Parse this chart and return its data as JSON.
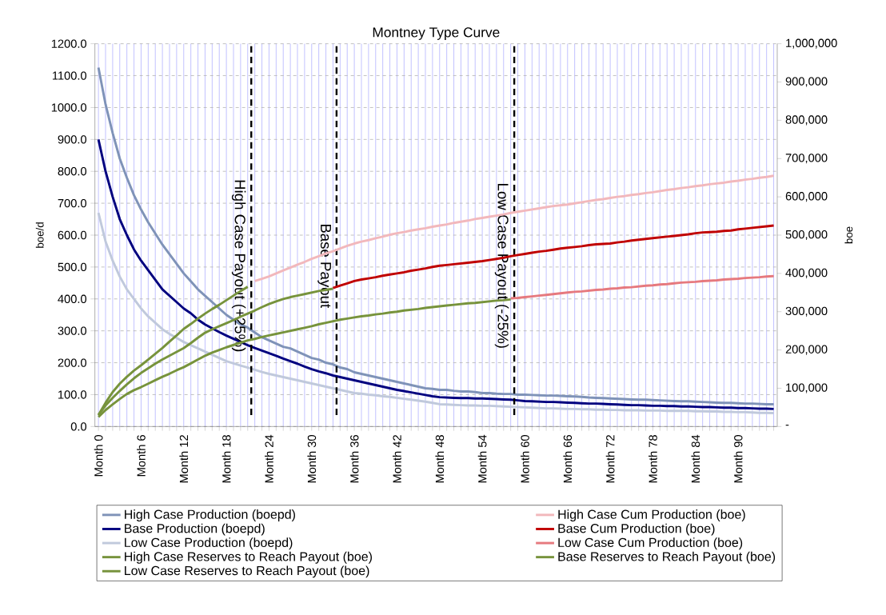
{
  "chart_data": {
    "type": "line",
    "title": "Montney Type Curve",
    "ylabel": "boe/d",
    "y2label": "boe",
    "categories": [
      "Month 0",
      null,
      null,
      null,
      null,
      null,
      "Month 6",
      null,
      null,
      null,
      null,
      null,
      "Month 12",
      null,
      null,
      null,
      null,
      null,
      "Month 18",
      null,
      null,
      null,
      null,
      null,
      "Month 24",
      null,
      null,
      null,
      null,
      null,
      "Month 30",
      null,
      null,
      null,
      null,
      null,
      "Month 36",
      null,
      null,
      null,
      null,
      null,
      "Month 42",
      null,
      null,
      null,
      null,
      null,
      "Month 48",
      null,
      null,
      null,
      null,
      null,
      "Month 54",
      null,
      null,
      null,
      null,
      null,
      "Month 60",
      null,
      null,
      null,
      null,
      null,
      "Month 66",
      null,
      null,
      null,
      null,
      null,
      "Month 72",
      null,
      null,
      null,
      null,
      null,
      "Month 78",
      null,
      null,
      null,
      null,
      null,
      "Month 84",
      null,
      null,
      null,
      null,
      null,
      "Month 90",
      null,
      null,
      null,
      null,
      null
    ],
    "ylim": [
      0,
      1200
    ],
    "yticks": [
      {
        "value": 0,
        "label": "0.0"
      },
      {
        "value": 100,
        "label": "100.0"
      },
      {
        "value": 200,
        "label": "200.0"
      },
      {
        "value": 300,
        "label": "300.0"
      },
      {
        "value": 400,
        "label": "400.0"
      },
      {
        "value": 500,
        "label": "500.0"
      },
      {
        "value": 600,
        "label": "600.0"
      },
      {
        "value": 700,
        "label": "700.0"
      },
      {
        "value": 800,
        "label": "800.0"
      },
      {
        "value": 900,
        "label": "900.0"
      },
      {
        "value": 1000,
        "label": "1000.0"
      },
      {
        "value": 1100,
        "label": "1100.0"
      },
      {
        "value": 1200,
        "label": "1200.0"
      }
    ],
    "y2lim": [
      0,
      1000000
    ],
    "y2ticks": [
      {
        "value": 0,
        "label": "-"
      },
      {
        "value": 100000,
        "label": "100,000"
      },
      {
        "value": 200000,
        "label": "200,000"
      },
      {
        "value": 300000,
        "label": "300,000"
      },
      {
        "value": 400000,
        "label": "400,000"
      },
      {
        "value": 500000,
        "label": "500,000"
      },
      {
        "value": 600000,
        "label": "600,000"
      },
      {
        "value": 700000,
        "label": "700,000"
      },
      {
        "value": 800000,
        "label": "800,000"
      },
      {
        "value": 900000,
        "label": "900,000"
      },
      {
        "value": 1000000,
        "label": "1,000,000"
      }
    ],
    "grid": true,
    "legend": "bottom",
    "annotations": [
      "High Case Payout (+25%)",
      "Base Payout",
      "Low Case Payout (-25%)"
    ],
    "series": [
      {
        "name": "High Case Production (boepd)",
        "color": "#7f93b8",
        "values": [
          1125,
          1010,
          920,
          840,
          780,
          725,
          680,
          640,
          605,
          570,
          540,
          510,
          480,
          455,
          430,
          410,
          390,
          370,
          350,
          335,
          320,
          310,
          295,
          280,
          270,
          260,
          250,
          245,
          235,
          225,
          215,
          210,
          200,
          195,
          185,
          180,
          170,
          165,
          160,
          155,
          150,
          145,
          140,
          135,
          130,
          125,
          120,
          118,
          115,
          115,
          112,
          110,
          110,
          108,
          105,
          105,
          103,
          102,
          102,
          100,
          100,
          99,
          98,
          97,
          97,
          96,
          95,
          94,
          93,
          91,
          90,
          89,
          88,
          87,
          86,
          85,
          84,
          84,
          83,
          82,
          81,
          80,
          79,
          79,
          78,
          77,
          76,
          75,
          74,
          74,
          73,
          72,
          72,
          71,
          70,
          70
        ]
      },
      {
        "name": "High Case Cum Production (boe)",
        "color": "#f2b8bc",
        "axis": "y2",
        "values": [
          null,
          null,
          null,
          null,
          null,
          null,
          null,
          null,
          null,
          null,
          null,
          null,
          null,
          null,
          null,
          null,
          null,
          null,
          null,
          null,
          null,
          null,
          380000,
          386000,
          392000,
          400000,
          408000,
          415000,
          423000,
          430000,
          438000,
          445000,
          452000,
          458000,
          465000,
          472000,
          478000,
          483000,
          487000,
          492000,
          496000,
          501000,
          505000,
          508000,
          512000,
          515000,
          518000,
          522000,
          525000,
          528000,
          532000,
          535000,
          538000,
          542000,
          545000,
          548000,
          551000,
          554000,
          558000,
          561000,
          564000,
          567000,
          570000,
          573000,
          576000,
          578000,
          580000,
          583000,
          586000,
          589000,
          592000,
          594000,
          597000,
          600000,
          602000,
          605000,
          607000,
          610000,
          612000,
          615000,
          618000,
          620000,
          623000,
          625000,
          628000,
          630000,
          633000,
          635000,
          637000,
          640000,
          642000,
          645000,
          647000,
          650000,
          652000,
          655000
        ]
      },
      {
        "name": "Base Production (boepd)",
        "color": "#00007f",
        "values": [
          900,
          800,
          720,
          650,
          600,
          555,
          520,
          490,
          460,
          430,
          410,
          390,
          370,
          355,
          335,
          320,
          308,
          296,
          285,
          275,
          265,
          255,
          246,
          238,
          230,
          222,
          213,
          205,
          197,
          188,
          180,
          173,
          167,
          160,
          155,
          150,
          145,
          140,
          135,
          130,
          125,
          120,
          115,
          111,
          107,
          103,
          99,
          95,
          92,
          91,
          90,
          89,
          89,
          88,
          88,
          87,
          86,
          85,
          84,
          82,
          80,
          79,
          78,
          77,
          77,
          76,
          75,
          74,
          73,
          72,
          72,
          71,
          70,
          69,
          68,
          67,
          67,
          66,
          65,
          65,
          64,
          64,
          63,
          63,
          62,
          61,
          61,
          60,
          59,
          59,
          58,
          58,
          57,
          56,
          56,
          55
        ]
      },
      {
        "name": "Base Cum Production (boe)",
        "color": "#c00000",
        "axis": "y2",
        "values": [
          null,
          null,
          null,
          null,
          null,
          null,
          null,
          null,
          null,
          null,
          null,
          null,
          null,
          null,
          null,
          null,
          null,
          null,
          null,
          null,
          null,
          null,
          null,
          null,
          null,
          null,
          null,
          null,
          null,
          null,
          null,
          null,
          null,
          362000,
          368000,
          374000,
          380000,
          384000,
          387000,
          390000,
          394000,
          397000,
          400000,
          403000,
          407000,
          410000,
          413000,
          417000,
          420000,
          422000,
          424000,
          426000,
          428000,
          430000,
          432000,
          435000,
          438000,
          441000,
          445000,
          448000,
          451000,
          454000,
          457000,
          459000,
          462000,
          465000,
          467000,
          469000,
          471000,
          474000,
          476000,
          477000,
          478000,
          481000,
          483000,
          486000,
          488000,
          490000,
          492000,
          494000,
          496000,
          498000,
          500000,
          502000,
          505000,
          507000,
          508000,
          509000,
          511000,
          512000,
          515000,
          517000,
          519000,
          521000,
          523000,
          525000
        ]
      },
      {
        "name": "Low Case Production (boepd)",
        "color": "#c0c9dc",
        "values": [
          670,
          580,
          520,
          470,
          430,
          400,
          370,
          345,
          325,
          305,
          290,
          278,
          265,
          255,
          245,
          235,
          225,
          215,
          205,
          198,
          191,
          185,
          178,
          171,
          165,
          160,
          155,
          150,
          145,
          140,
          135,
          130,
          125,
          120,
          115,
          110,
          105,
          103,
          100,
          98,
          95,
          93,
          90,
          87,
          84,
          81,
          78,
          74,
          70,
          69,
          68,
          67,
          66,
          66,
          65,
          65,
          64,
          63,
          62,
          61,
          60,
          59,
          58,
          57,
          57,
          56,
          55,
          55,
          54,
          54,
          53,
          53,
          52,
          52,
          51,
          51,
          51,
          50,
          50,
          50,
          49,
          49,
          49,
          49,
          48,
          48,
          47,
          47,
          46,
          46,
          45,
          45,
          44,
          43,
          43,
          42
        ]
      },
      {
        "name": "Low Case Cum Production (boe)",
        "color": "#e6797e",
        "axis": "y2",
        "values": [
          null,
          null,
          null,
          null,
          null,
          null,
          null,
          null,
          null,
          null,
          null,
          null,
          null,
          null,
          null,
          null,
          null,
          null,
          null,
          null,
          null,
          null,
          null,
          null,
          null,
          null,
          null,
          null,
          null,
          null,
          null,
          null,
          null,
          null,
          null,
          null,
          null,
          null,
          null,
          null,
          null,
          null,
          null,
          null,
          null,
          null,
          null,
          null,
          null,
          null,
          null,
          null,
          null,
          null,
          null,
          null,
          null,
          null,
          335000,
          336000,
          338000,
          340000,
          342000,
          344000,
          346000,
          348000,
          350000,
          352000,
          353000,
          355000,
          357000,
          358000,
          360000,
          361000,
          363000,
          364000,
          366000,
          368000,
          369000,
          371000,
          372000,
          374000,
          376000,
          377000,
          378000,
          380000,
          381000,
          382000,
          384000,
          385000,
          386000,
          388000,
          389000,
          390000,
          392000,
          393000
        ]
      },
      {
        "name": "High Case Reserves to Reach Payout (boe)",
        "color": "#77933c",
        "axis": "y2",
        "values": [
          30000,
          62000,
          90000,
          112000,
          130000,
          146000,
          160000,
          175000,
          190000,
          205000,
          222000,
          238000,
          255000,
          268000,
          282000,
          295000,
          307000,
          318000,
          330000,
          342000,
          354000,
          365000,
          null,
          null,
          null,
          null,
          null,
          null,
          null,
          null,
          null,
          null,
          null,
          null,
          null,
          null,
          null,
          null,
          null,
          null,
          null,
          null,
          null,
          null,
          null,
          null,
          null,
          null,
          null,
          null,
          null,
          null,
          null,
          null,
          null,
          null,
          null,
          null,
          null,
          null,
          null,
          null,
          null,
          null,
          null,
          null,
          null,
          null,
          null,
          null,
          null,
          null,
          null,
          null,
          null,
          null,
          null,
          null,
          null,
          null,
          null,
          null,
          null,
          null,
          null,
          null,
          null,
          null,
          null,
          null,
          null,
          null,
          null,
          null,
          null,
          null
        ]
      },
      {
        "name": "Base Reserves to Reach Payout (boe)",
        "color": "#77933c",
        "axis": "y2",
        "values": [
          30000,
          55000,
          75000,
          93000,
          110000,
          126000,
          140000,
          152000,
          164000,
          175000,
          185000,
          195000,
          205000,
          218000,
          232000,
          245000,
          254000,
          262000,
          270000,
          278000,
          287000,
          295000,
          303000,
          312000,
          320000,
          327000,
          333000,
          338000,
          342000,
          346000,
          350000,
          354000,
          357000,
          360000,
          null,
          null,
          null,
          null,
          null,
          null,
          null,
          null,
          null,
          null,
          null,
          null,
          null,
          null,
          null,
          null,
          null,
          null,
          null,
          null,
          null,
          null,
          null,
          null,
          null,
          null,
          null,
          null,
          null,
          null,
          null,
          null,
          null,
          null,
          null,
          null,
          null,
          null,
          null,
          null,
          null,
          null,
          null,
          null,
          null,
          null,
          null,
          null,
          null,
          null,
          null,
          null,
          null,
          null,
          null,
          null,
          null,
          null,
          null,
          null,
          null,
          null
        ]
      },
      {
        "name": "Low Case Reserves to Reach Payout (boe)",
        "color": "#77933c",
        "axis": "y2",
        "values": [
          25000,
          43000,
          58000,
          72000,
          85000,
          95000,
          103000,
          112000,
          121000,
          130000,
          138000,
          147000,
          155000,
          165000,
          175000,
          185000,
          193000,
          200000,
          207000,
          213000,
          219000,
          225000,
          229000,
          234000,
          238000,
          242000,
          246000,
          250000,
          254000,
          258000,
          262000,
          267000,
          271000,
          275000,
          279000,
          282000,
          285000,
          288000,
          290000,
          293000,
          295000,
          298000,
          300000,
          303000,
          305000,
          307000,
          310000,
          312000,
          314000,
          316000,
          318000,
          320000,
          322000,
          323000,
          325000,
          327000,
          329000,
          330000,
          332000,
          null,
          null,
          null,
          null,
          null,
          null,
          null,
          null,
          null,
          null,
          null,
          null,
          null,
          null,
          null,
          null,
          null,
          null,
          null,
          null,
          null,
          null,
          null,
          null,
          null,
          null,
          null,
          null,
          null,
          null,
          null,
          null,
          null,
          null,
          null,
          null,
          null
        ]
      }
    ]
  }
}
